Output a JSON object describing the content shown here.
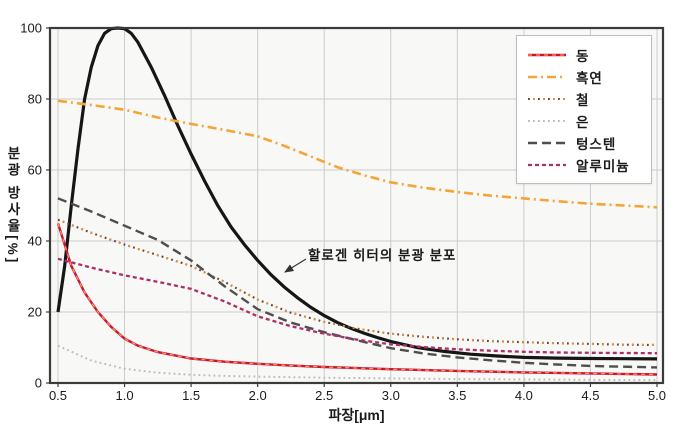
{
  "colors": {
    "background": "#ffffff",
    "plot_background": "#f8f8f6",
    "grid": "#cccccc",
    "border": "#3b3b3b",
    "text": "#1a1a1a",
    "annotation_arrow": "#333333"
  },
  "y_axis": {
    "label": "분광 방사율[%]"
  },
  "x_axis": {
    "label": "파장[μm]"
  },
  "annotation": {
    "text": "할로겐 히터의 분광 분포"
  },
  "legend": {
    "items": [
      {
        "key": "copper",
        "label": "동"
      },
      {
        "key": "graphite",
        "label": "흑연"
      },
      {
        "key": "iron",
        "label": "철"
      },
      {
        "key": "silver",
        "label": "은"
      },
      {
        "key": "tungsten",
        "label": "텅스텐"
      },
      {
        "key": "aluminum",
        "label": "알루미늄"
      }
    ]
  },
  "chart_data": {
    "type": "line",
    "title": "",
    "xlabel": "파장[μm]",
    "ylabel": "분광 방사율[%]",
    "xlim": [
      0.44,
      5.05
    ],
    "ylim": [
      0,
      100
    ],
    "x_ticks": [
      "0.5",
      "1.0",
      "1.5",
      "2.0",
      "2.5",
      "3.0",
      "3.5",
      "4.0",
      "4.5",
      "5.0"
    ],
    "y_ticks": [
      "0",
      "20",
      "40",
      "60",
      "80",
      "100"
    ],
    "grid": true,
    "legend_position": "top-right",
    "series": [
      {
        "key": "halogen",
        "name": "할로겐 히터의 분광 분포",
        "style": {
          "color": "#161616",
          "width": 3.2,
          "dash": ""
        },
        "points": [
          [
            0.5,
            20
          ],
          [
            0.55,
            33
          ],
          [
            0.6,
            50
          ],
          [
            0.65,
            66
          ],
          [
            0.7,
            80
          ],
          [
            0.75,
            89
          ],
          [
            0.8,
            95
          ],
          [
            0.85,
            98.5
          ],
          [
            0.9,
            99.8
          ],
          [
            0.95,
            100
          ],
          [
            1.0,
            99.8
          ],
          [
            1.05,
            98.5
          ],
          [
            1.1,
            96
          ],
          [
            1.2,
            89
          ],
          [
            1.3,
            81
          ],
          [
            1.4,
            72.5
          ],
          [
            1.5,
            64.5
          ],
          [
            1.6,
            57
          ],
          [
            1.7,
            50
          ],
          [
            1.8,
            44
          ],
          [
            1.9,
            39
          ],
          [
            2.0,
            34.5
          ],
          [
            2.1,
            30.5
          ],
          [
            2.2,
            27
          ],
          [
            2.3,
            24
          ],
          [
            2.4,
            21.3
          ],
          [
            2.5,
            19
          ],
          [
            2.6,
            17
          ],
          [
            2.7,
            15.4
          ],
          [
            2.8,
            14
          ],
          [
            2.9,
            12.8
          ],
          [
            3.0,
            11.7
          ],
          [
            3.2,
            10
          ],
          [
            3.4,
            8.9
          ],
          [
            3.6,
            8.1
          ],
          [
            3.8,
            7.6
          ],
          [
            4.0,
            7.2
          ],
          [
            4.25,
            7.0
          ],
          [
            4.5,
            6.9
          ],
          [
            4.75,
            6.85
          ],
          [
            5.0,
            6.8
          ]
        ]
      },
      {
        "key": "graphite",
        "name": "흑연",
        "style": {
          "color": "#f5a437",
          "width": 2.6,
          "dash": "9 4 2 4"
        },
        "points": [
          [
            0.5,
            79.5
          ],
          [
            0.75,
            78.3
          ],
          [
            1.0,
            77
          ],
          [
            1.25,
            74.8
          ],
          [
            1.5,
            73
          ],
          [
            1.75,
            71.3
          ],
          [
            2.0,
            69.5
          ],
          [
            2.2,
            66.8
          ],
          [
            2.4,
            63.8
          ],
          [
            2.6,
            60.8
          ],
          [
            2.8,
            58.5
          ],
          [
            3.0,
            56.5
          ],
          [
            3.25,
            55
          ],
          [
            3.5,
            53.8
          ],
          [
            3.75,
            52.8
          ],
          [
            4.0,
            52
          ],
          [
            4.25,
            51.2
          ],
          [
            4.5,
            50.5
          ],
          [
            4.75,
            50
          ],
          [
            5.0,
            49.5
          ]
        ]
      },
      {
        "key": "iron",
        "name": "철",
        "style": {
          "color": "#6e4030",
          "width": 2.1,
          "dash": "1.8 3.2",
          "overlay": {
            "color": "#e09040",
            "width": 2.1,
            "dash": "1.8 8.2",
            "offset": 5
          }
        },
        "points": [
          [
            0.5,
            46
          ],
          [
            0.75,
            42.3
          ],
          [
            1.0,
            39
          ],
          [
            1.25,
            36
          ],
          [
            1.5,
            33
          ],
          [
            1.75,
            28.5
          ],
          [
            2.0,
            23.5
          ],
          [
            2.25,
            19.8
          ],
          [
            2.5,
            17.2
          ],
          [
            2.75,
            15.3
          ],
          [
            3.0,
            13.9
          ],
          [
            3.25,
            13
          ],
          [
            3.5,
            12.3
          ],
          [
            3.75,
            11.8
          ],
          [
            4.0,
            11.5
          ],
          [
            4.25,
            11.2
          ],
          [
            4.5,
            11
          ],
          [
            4.75,
            10.8
          ],
          [
            5.0,
            10.7
          ]
        ]
      },
      {
        "key": "silver",
        "name": "은",
        "style": {
          "color": "#bcbcbc",
          "width": 2.0,
          "dash": "1.8 3.2"
        },
        "points": [
          [
            0.5,
            10.5
          ],
          [
            0.75,
            6.3
          ],
          [
            1.0,
            4
          ],
          [
            1.25,
            2.9
          ],
          [
            1.5,
            2.3
          ],
          [
            1.75,
            2
          ],
          [
            2.0,
            1.8
          ],
          [
            2.5,
            1.5
          ],
          [
            3.0,
            1.3
          ],
          [
            3.5,
            1.1
          ],
          [
            4.0,
            1.0
          ],
          [
            4.5,
            0.9
          ],
          [
            5.0,
            0.8
          ]
        ]
      },
      {
        "key": "tungsten",
        "name": "텅스텐",
        "style": {
          "color": "#4e4e4e",
          "width": 2.4,
          "dash": "9 5"
        },
        "points": [
          [
            0.5,
            52
          ],
          [
            0.75,
            48.3
          ],
          [
            1.0,
            44.3
          ],
          [
            1.25,
            40.3
          ],
          [
            1.5,
            34.5
          ],
          [
            1.75,
            27.3
          ],
          [
            2.0,
            20.8
          ],
          [
            2.25,
            17
          ],
          [
            2.5,
            14.3
          ],
          [
            2.75,
            12
          ],
          [
            3.0,
            9.8
          ],
          [
            3.25,
            8.3
          ],
          [
            3.5,
            7.2
          ],
          [
            3.75,
            6.4
          ],
          [
            4.0,
            5.7
          ],
          [
            4.25,
            5.2
          ],
          [
            4.5,
            4.8
          ],
          [
            4.75,
            4.6
          ],
          [
            5.0,
            4.4
          ]
        ]
      },
      {
        "key": "aluminum",
        "name": "알루미늄",
        "style": {
          "color": "#ae2f68",
          "width": 2.3,
          "dash": "4 3"
        },
        "points": [
          [
            0.5,
            35
          ],
          [
            0.75,
            32.5
          ],
          [
            1.0,
            30.3
          ],
          [
            1.25,
            28.5
          ],
          [
            1.5,
            26.5
          ],
          [
            1.75,
            23
          ],
          [
            2.0,
            18.8
          ],
          [
            2.25,
            16
          ],
          [
            2.5,
            13.9
          ],
          [
            2.75,
            12.2
          ],
          [
            3.0,
            10.9
          ],
          [
            3.25,
            10.1
          ],
          [
            3.5,
            9.5
          ],
          [
            3.75,
            9.1
          ],
          [
            4.0,
            8.8
          ],
          [
            4.25,
            8.6
          ],
          [
            4.5,
            8.5
          ],
          [
            4.75,
            8.45
          ],
          [
            5.0,
            8.4
          ]
        ]
      },
      {
        "key": "copper",
        "name": "동",
        "style": {
          "color": "#cb1148",
          "width": 2.4,
          "dash": "",
          "overlay": {
            "color": "#f2a134",
            "width": 1.3,
            "dash": "4 4",
            "offset": 0
          }
        },
        "points": [
          [
            0.5,
            45
          ],
          [
            0.6,
            33
          ],
          [
            0.7,
            25.5
          ],
          [
            0.8,
            20
          ],
          [
            0.9,
            15.8
          ],
          [
            1.0,
            12.5
          ],
          [
            1.1,
            10.5
          ],
          [
            1.25,
            8.7
          ],
          [
            1.5,
            6.9
          ],
          [
            1.75,
            6
          ],
          [
            2.0,
            5.4
          ],
          [
            2.25,
            4.9
          ],
          [
            2.5,
            4.5
          ],
          [
            2.75,
            4.2
          ],
          [
            3.0,
            3.9
          ],
          [
            3.5,
            3.4
          ],
          [
            4.0,
            3.0
          ],
          [
            4.5,
            2.7
          ],
          [
            5.0,
            2.4
          ]
        ]
      }
    ]
  }
}
